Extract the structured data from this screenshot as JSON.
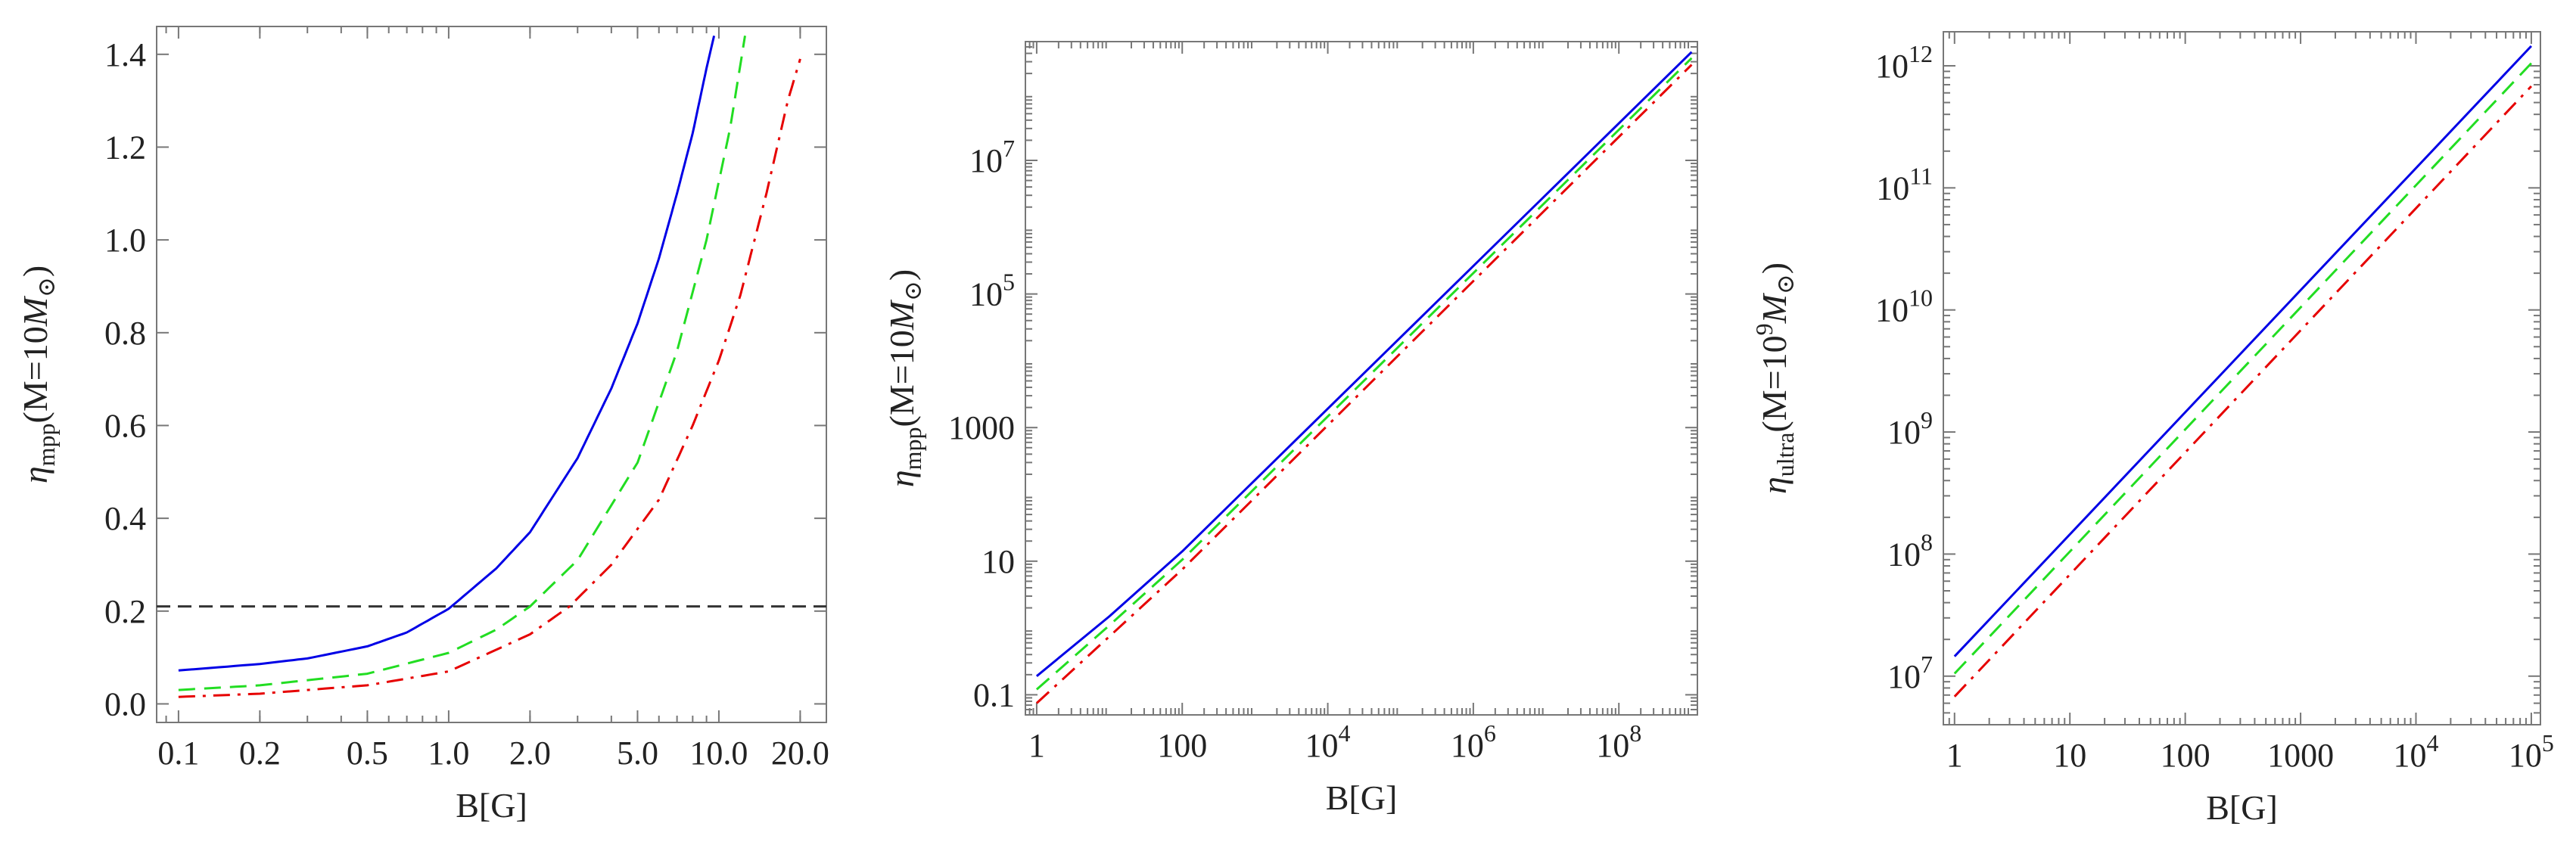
{
  "chart_data": [
    {
      "type": "line",
      "xscale": "log",
      "yscale": "linear",
      "xlabel": "B[G]",
      "ylabel": {
        "base": "η",
        "sub": "mpp",
        "rest": "(M=10",
        "mass": "M",
        "mass_sub": "⊙",
        "close": ")"
      },
      "xlim": [
        0.083,
        25
      ],
      "ylim": [
        -0.04,
        1.46
      ],
      "xticks": [
        0.1,
        0.2,
        0.5,
        1.0,
        2.0,
        5.0,
        10.0,
        20.0
      ],
      "xtick_labels": [
        "0.1",
        "0.2",
        "0.5",
        "1.0",
        "2.0",
        "5.0",
        "10.0",
        "20.0"
      ],
      "yticks": [
        0.0,
        0.2,
        0.4,
        0.6,
        0.8,
        1.0,
        1.2,
        1.4
      ],
      "ytick_labels": [
        "0.0",
        "0.2",
        "0.4",
        "0.6",
        "0.8",
        "1.0",
        "1.2",
        "1.4"
      ],
      "reference_line": {
        "y": 0.21,
        "color": "#333333",
        "style": "dashed"
      },
      "series": [
        {
          "color": "#0000e6",
          "style": "solid",
          "x": [
            0.1,
            0.2,
            0.3,
            0.5,
            0.7,
            1.0,
            1.5,
            2.0,
            3.0,
            4.0,
            5.0,
            6.0,
            7.0,
            8.0,
            9.0,
            9.6
          ],
          "y": [
            0.072,
            0.086,
            0.098,
            0.124,
            0.154,
            0.205,
            0.292,
            0.37,
            0.53,
            0.68,
            0.82,
            0.96,
            1.1,
            1.23,
            1.37,
            1.44
          ]
        },
        {
          "color": "#22dd22",
          "style": "dashed",
          "x": [
            0.1,
            0.2,
            0.5,
            1.0,
            1.5,
            2.0,
            3.0,
            5.0,
            7.0,
            9.0,
            11.0,
            12.5
          ],
          "y": [
            0.03,
            0.04,
            0.065,
            0.11,
            0.16,
            0.21,
            0.31,
            0.52,
            0.76,
            1.0,
            1.24,
            1.44
          ]
        },
        {
          "color": "#e60000",
          "style": "dashdot",
          "x": [
            0.1,
            0.2,
            0.5,
            1.0,
            2.0,
            2.8,
            4.0,
            6.0,
            8.0,
            10.0,
            12.0,
            15.0,
            18.0,
            20.0
          ],
          "y": [
            0.015,
            0.022,
            0.04,
            0.07,
            0.15,
            0.21,
            0.3,
            0.44,
            0.6,
            0.74,
            0.88,
            1.1,
            1.3,
            1.39
          ]
        }
      ]
    },
    {
      "type": "line",
      "xscale": "log",
      "yscale": "log",
      "xlabel": "B[G]",
      "ylabel": {
        "base": "η",
        "sub": "mpp",
        "rest": "(M=10",
        "mass": "M",
        "mass_sub": "⊙",
        "close": ")"
      },
      "xlim": [
        0.7,
        1200000000.0
      ],
      "ylim": [
        0.05,
        600000000.0
      ],
      "xticks": [
        1,
        100,
        10000,
        1000000,
        100000000
      ],
      "xtick_labels": [
        {
          "m": "1"
        },
        {
          "m": "100"
        },
        {
          "m": "10",
          "e": "4"
        },
        {
          "m": "10",
          "e": "6"
        },
        {
          "m": "10",
          "e": "8"
        }
      ],
      "yticks": [
        0.1,
        10,
        1000,
        100000,
        10000000
      ],
      "ytick_labels": [
        {
          "m": "0.1"
        },
        {
          "m": "10"
        },
        {
          "m": "1000"
        },
        {
          "m": "10",
          "e": "5"
        },
        {
          "m": "10",
          "e": "7"
        }
      ],
      "series": [
        {
          "color": "#0000e6",
          "style": "solid",
          "x": [
            1,
            10,
            100,
            1000000000.0
          ],
          "y": [
            0.19,
            1.5,
            14,
            420000000.0
          ]
        },
        {
          "color": "#22dd22",
          "style": "dashed",
          "x": [
            1,
            10,
            100,
            1000000000.0
          ],
          "y": [
            0.12,
            1.1,
            10.5,
            340000000.0
          ]
        },
        {
          "color": "#e60000",
          "style": "dashdot",
          "x": [
            1,
            10,
            100,
            1000000000.0
          ],
          "y": [
            0.075,
            0.75,
            7.5,
            270000000.0
          ]
        }
      ]
    },
    {
      "type": "line",
      "xscale": "log",
      "yscale": "log",
      "xlabel": "B[G]",
      "ylabel": {
        "base": "η",
        "sub": "ultra",
        "rest": "(M=10",
        "sup": "9",
        "mass": "M",
        "mass_sub": "⊙",
        "close": ")"
      },
      "xlim": [
        0.8,
        120000.0
      ],
      "ylim": [
        4000000.0,
        1900000000000.0
      ],
      "xticks": [
        1,
        10,
        100,
        1000,
        10000,
        100000
      ],
      "xtick_labels": [
        {
          "m": "1"
        },
        {
          "m": "10"
        },
        {
          "m": "100"
        },
        {
          "m": "1000"
        },
        {
          "m": "10",
          "e": "4"
        },
        {
          "m": "10",
          "e": "5"
        }
      ],
      "yticks": [
        10000000,
        100000000,
        1000000000,
        10000000000,
        100000000000,
        1000000000000
      ],
      "ytick_labels": [
        {
          "m": "10",
          "e": "7"
        },
        {
          "m": "10",
          "e": "8"
        },
        {
          "m": "10",
          "e": "9"
        },
        {
          "m": "10",
          "e": "10"
        },
        {
          "m": "10",
          "e": "11"
        },
        {
          "m": "10",
          "e": "12"
        }
      ],
      "series": [
        {
          "color": "#0000e6",
          "style": "solid",
          "x": [
            1,
            100000
          ],
          "y": [
            14500000.0,
            1450000000000.0
          ]
        },
        {
          "color": "#22dd22",
          "style": "dashed",
          "x": [
            1,
            100000
          ],
          "y": [
            10500000.0,
            1050000000000.0
          ]
        },
        {
          "color": "#e60000",
          "style": "dashdot",
          "x": [
            1,
            100000
          ],
          "y": [
            6800000.0,
            680000000000.0
          ]
        }
      ]
    }
  ]
}
